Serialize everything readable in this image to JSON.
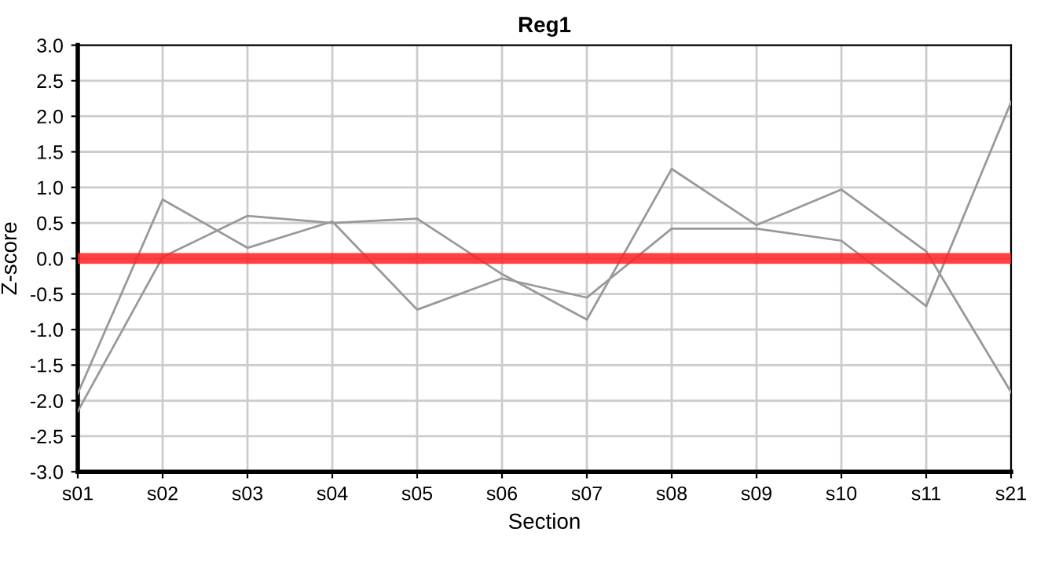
{
  "chart_data": {
    "type": "line",
    "title": "Reg1",
    "xlabel": "Section",
    "ylabel": "Z-score",
    "categories": [
      "s01",
      "s02",
      "s03",
      "s04",
      "s05",
      "s06",
      "s07",
      "s08",
      "s09",
      "s10",
      "s11",
      "s21"
    ],
    "series": [
      {
        "color": "#999999",
        "values": [
          -1.9,
          0.83,
          0.15,
          0.52,
          -0.72,
          -0.28,
          -0.55,
          0.42,
          0.42,
          0.25,
          -0.67,
          2.2
        ]
      },
      {
        "color": "#999999",
        "values": [
          -2.15,
          0.02,
          0.6,
          0.5,
          0.56,
          -0.22,
          -0.86,
          1.26,
          0.47,
          0.97,
          0.1,
          -1.88
        ]
      }
    ],
    "ylim": [
      -3,
      3
    ],
    "yticks": [
      {
        "value": -3,
        "label": "-3.0"
      },
      {
        "value": -2.5,
        "label": "-2.5"
      },
      {
        "value": -2,
        "label": "-2.0"
      },
      {
        "value": -1.5,
        "label": "-1.5"
      },
      {
        "value": -1,
        "label": "-1.0"
      },
      {
        "value": -0.5,
        "label": "-0.5"
      },
      {
        "value": 0,
        "label": "0.0"
      },
      {
        "value": 0.5,
        "label": "0.5"
      },
      {
        "value": 1,
        "label": "1.0"
      },
      {
        "value": 1.5,
        "label": "1.5"
      },
      {
        "value": 2,
        "label": "2.0"
      },
      {
        "value": 2.5,
        "label": "2.5"
      },
      {
        "value": 3,
        "label": "3.0"
      }
    ],
    "ref_lines": [
      {
        "axis": "y",
        "value": 0,
        "color": "#ff2020"
      }
    ],
    "grid": true,
    "marker": "none",
    "line_style": "solid"
  }
}
